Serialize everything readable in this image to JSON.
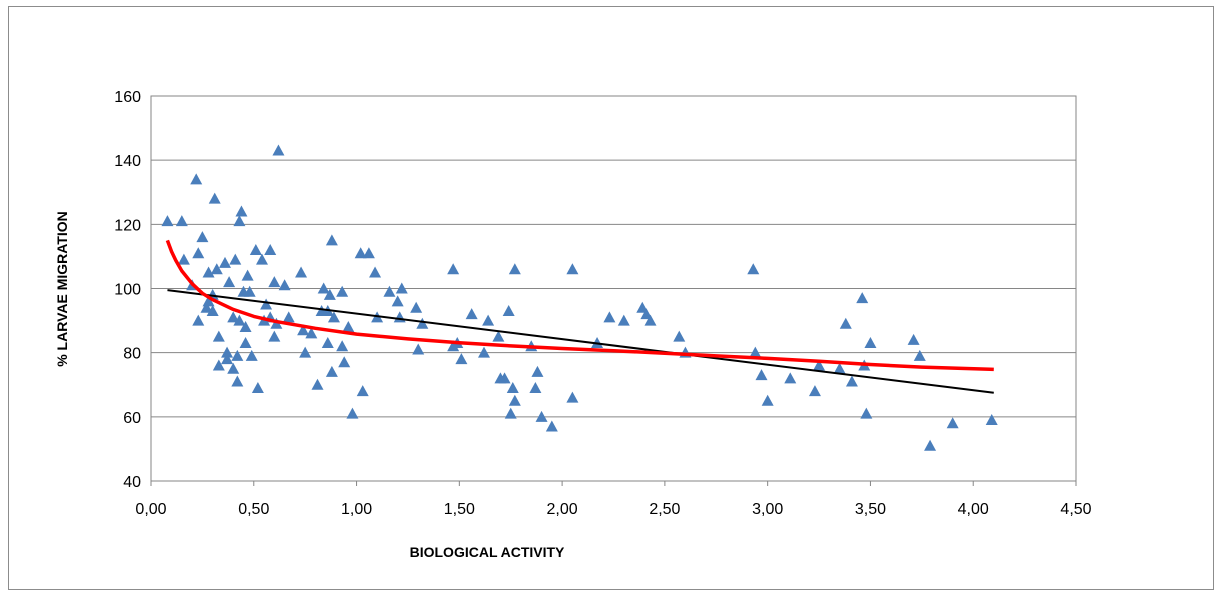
{
  "chart_data": {
    "type": "scatter",
    "xlabel": "BIOLOGICAL ACTIVITY",
    "ylabel": "% LARVAE MIGRATION",
    "xlim": [
      0,
      4.5
    ],
    "ylim": [
      40,
      160
    ],
    "x_ticks": [
      "0,00",
      "0,50",
      "1,00",
      "1,50",
      "2,00",
      "2,50",
      "3,00",
      "3,50",
      "4,00",
      "4,50"
    ],
    "y_ticks": [
      "40",
      "60",
      "80",
      "100",
      "120",
      "140",
      "160"
    ],
    "grid": "horizontal",
    "legend": "none",
    "marker": "triangle",
    "colors": {
      "points": "#4a7ebb",
      "linear_trend": "#000000",
      "log_trend": "#ff0000",
      "grid": "#868686",
      "frame": "#8c8c8c"
    },
    "points": [
      [
        0.08,
        121
      ],
      [
        0.15,
        121
      ],
      [
        0.16,
        109
      ],
      [
        0.2,
        101
      ],
      [
        0.22,
        134
      ],
      [
        0.23,
        111
      ],
      [
        0.23,
        90
      ],
      [
        0.25,
        116
      ],
      [
        0.27,
        94
      ],
      [
        0.28,
        105
      ],
      [
        0.28,
        96
      ],
      [
        0.3,
        93
      ],
      [
        0.3,
        98
      ],
      [
        0.31,
        128
      ],
      [
        0.32,
        106
      ],
      [
        0.33,
        85
      ],
      [
        0.33,
        76
      ],
      [
        0.36,
        108
      ],
      [
        0.37,
        78
      ],
      [
        0.37,
        80
      ],
      [
        0.38,
        102
      ],
      [
        0.4,
        91
      ],
      [
        0.4,
        75
      ],
      [
        0.41,
        109
      ],
      [
        0.42,
        71
      ],
      [
        0.42,
        79
      ],
      [
        0.43,
        90
      ],
      [
        0.43,
        121
      ],
      [
        0.44,
        124
      ],
      [
        0.45,
        99
      ],
      [
        0.46,
        83
      ],
      [
        0.46,
        88
      ],
      [
        0.47,
        104
      ],
      [
        0.48,
        99
      ],
      [
        0.49,
        79
      ],
      [
        0.51,
        112
      ],
      [
        0.52,
        69
      ],
      [
        0.54,
        109
      ],
      [
        0.55,
        90
      ],
      [
        0.56,
        95
      ],
      [
        0.58,
        112
      ],
      [
        0.58,
        91
      ],
      [
        0.6,
        102
      ],
      [
        0.6,
        85
      ],
      [
        0.61,
        89
      ],
      [
        0.62,
        143
      ],
      [
        0.65,
        101
      ],
      [
        0.67,
        91
      ],
      [
        0.73,
        105
      ],
      [
        0.74,
        87
      ],
      [
        0.75,
        80
      ],
      [
        0.78,
        86
      ],
      [
        0.81,
        70
      ],
      [
        0.83,
        93
      ],
      [
        0.84,
        100
      ],
      [
        0.86,
        83
      ],
      [
        0.86,
        93
      ],
      [
        0.87,
        98
      ],
      [
        0.88,
        74
      ],
      [
        0.88,
        115
      ],
      [
        0.89,
        91
      ],
      [
        0.93,
        99
      ],
      [
        0.93,
        82
      ],
      [
        0.94,
        77
      ],
      [
        0.96,
        88
      ],
      [
        0.98,
        61
      ],
      [
        1.02,
        111
      ],
      [
        1.03,
        68
      ],
      [
        1.06,
        111
      ],
      [
        1.09,
        105
      ],
      [
        1.1,
        91
      ],
      [
        1.16,
        99
      ],
      [
        1.2,
        96
      ],
      [
        1.21,
        91
      ],
      [
        1.22,
        100
      ],
      [
        1.29,
        94
      ],
      [
        1.3,
        81
      ],
      [
        1.32,
        89
      ],
      [
        1.47,
        106
      ],
      [
        1.47,
        82
      ],
      [
        1.49,
        83
      ],
      [
        1.51,
        78
      ],
      [
        1.56,
        92
      ],
      [
        1.62,
        80
      ],
      [
        1.64,
        90
      ],
      [
        1.69,
        85
      ],
      [
        1.7,
        72
      ],
      [
        1.72,
        72
      ],
      [
        1.74,
        93
      ],
      [
        1.75,
        61
      ],
      [
        1.76,
        69
      ],
      [
        1.77,
        106
      ],
      [
        1.77,
        65
      ],
      [
        1.85,
        82
      ],
      [
        1.87,
        69
      ],
      [
        1.88,
        74
      ],
      [
        1.9,
        60
      ],
      [
        1.95,
        57
      ],
      [
        2.05,
        106
      ],
      [
        2.05,
        66
      ],
      [
        2.17,
        83
      ],
      [
        2.23,
        91
      ],
      [
        2.3,
        90
      ],
      [
        2.39,
        94
      ],
      [
        2.41,
        92
      ],
      [
        2.43,
        90
      ],
      [
        2.57,
        85
      ],
      [
        2.6,
        80
      ],
      [
        2.93,
        106
      ],
      [
        2.94,
        80
      ],
      [
        2.97,
        73
      ],
      [
        3.0,
        65
      ],
      [
        3.11,
        72
      ],
      [
        3.23,
        68
      ],
      [
        3.25,
        76
      ],
      [
        3.35,
        75
      ],
      [
        3.38,
        89
      ],
      [
        3.41,
        71
      ],
      [
        3.46,
        97
      ],
      [
        3.47,
        76
      ],
      [
        3.48,
        61
      ],
      [
        3.5,
        83
      ],
      [
        3.71,
        84
      ],
      [
        3.74,
        79
      ],
      [
        3.79,
        51
      ],
      [
        3.9,
        58
      ],
      [
        4.09,
        59
      ]
    ],
    "linear_trend": {
      "x": [
        0.08,
        4.1
      ],
      "y": [
        99.5,
        67.5
      ]
    },
    "log_trend": {
      "x": [
        0.08,
        0.1,
        0.12,
        0.15,
        0.2,
        0.25,
        0.3,
        0.4,
        0.5,
        0.6,
        0.8,
        1.0,
        1.25,
        1.5,
        1.75,
        2.0,
        2.25,
        2.5,
        2.75,
        3.0,
        3.25,
        3.5,
        3.75,
        4.1
      ],
      "y": [
        115,
        111.5,
        108.8,
        105.5,
        101.5,
        98.5,
        96.5,
        93.5,
        91.3,
        89.8,
        87.6,
        85.8,
        84.3,
        83.1,
        82.1,
        81.3,
        80.6,
        79.8,
        79.0,
        78.2,
        77.3,
        76.3,
        75.5,
        74.8
      ]
    }
  }
}
